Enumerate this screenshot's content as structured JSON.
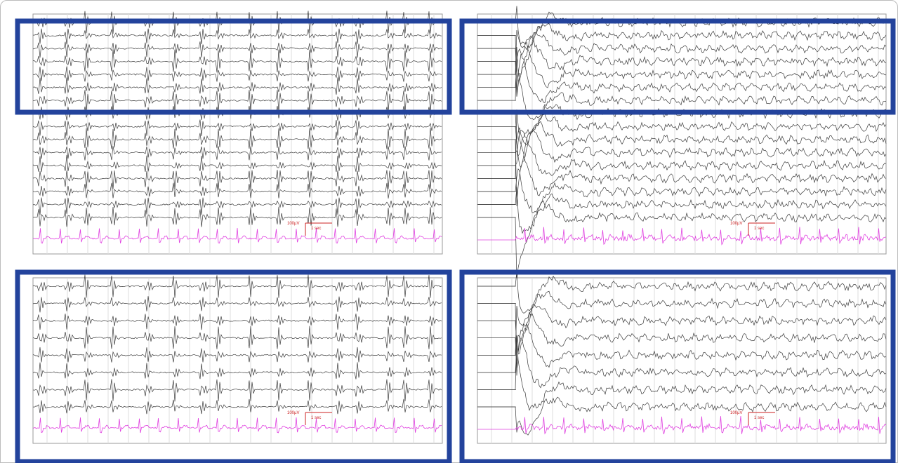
{
  "panels": [
    {
      "id": "top-left",
      "kind": "seizure-onset",
      "highlight": "partial",
      "eeg_channels": 16,
      "scale_amplitude": "100µV",
      "scale_time": "1 sec"
    },
    {
      "id": "top-right",
      "kind": "post-stimulus",
      "highlight": "partial",
      "eeg_channels": 16,
      "scale_amplitude": "100µV",
      "scale_time": "1 sec"
    },
    {
      "id": "bottom-left",
      "kind": "seizure-onset",
      "highlight": "full",
      "eeg_channels": 8,
      "scale_amplitude": "100µV",
      "scale_time": "1 sec"
    },
    {
      "id": "bottom-right",
      "kind": "post-stimulus",
      "highlight": "full",
      "eeg_channels": 8,
      "scale_amplitude": "100µV",
      "scale_time": "1 sec"
    }
  ],
  "colors": {
    "highlight_border": "#23439c",
    "eeg_trace": "#3a3a3a",
    "ecg_trace": "#e040e0",
    "scale_bar": "#cc2222",
    "grid": "#dddddd"
  }
}
